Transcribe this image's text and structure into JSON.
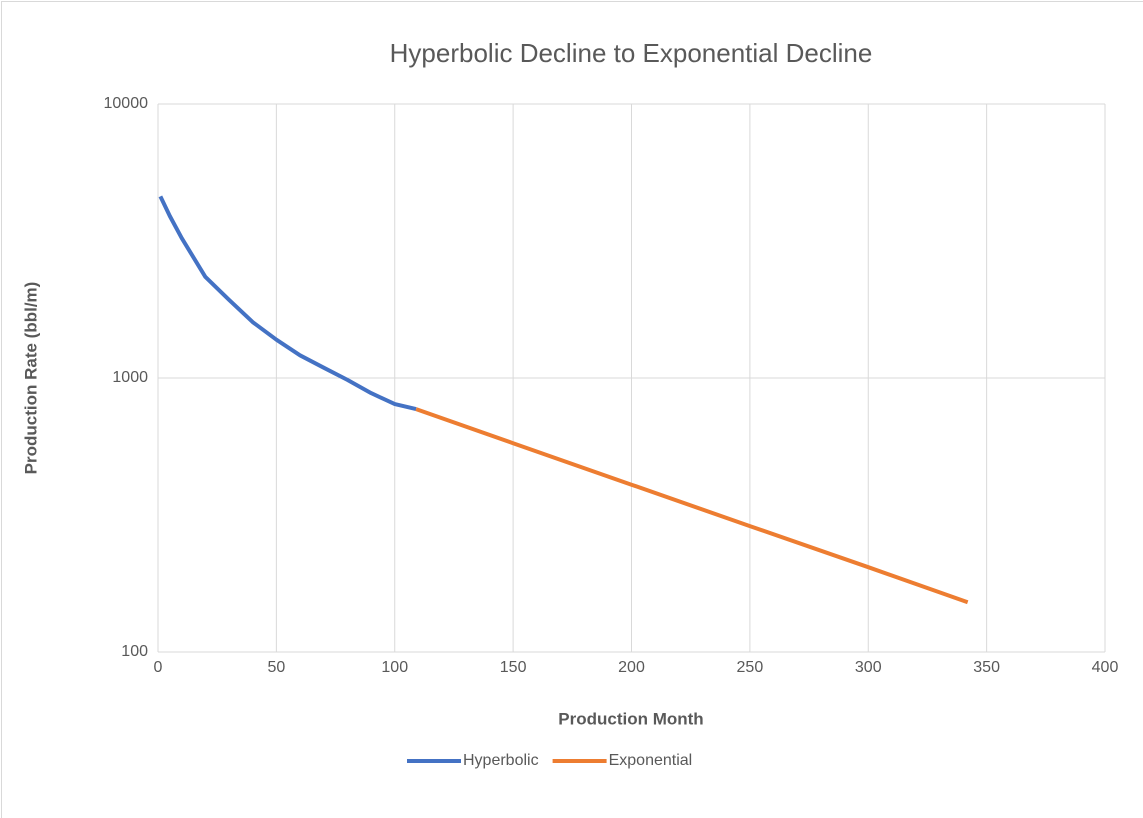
{
  "chart_data": {
    "type": "line",
    "title": "Hyperbolic Decline to Exponential Decline",
    "x_label": "Production Month",
    "y_label": "Production Rate (bbl/m)",
    "xlim": [
      0,
      400
    ],
    "xticks": [
      0,
      50,
      100,
      150,
      200,
      250,
      300,
      350,
      400
    ],
    "ylim": [
      100,
      10000
    ],
    "yticks": [
      100,
      1000,
      10000
    ],
    "y_scale": "log",
    "grid": true,
    "legend": "bottom",
    "series": [
      {
        "name": "Hyperbolic",
        "color": "#4472c4",
        "x": [
          1,
          5,
          10,
          20,
          30,
          40,
          50,
          60,
          70,
          80,
          90,
          100,
          109
        ],
        "values": [
          4600,
          3900,
          3240,
          2340,
          1930,
          1600,
          1380,
          1210,
          1090,
          984,
          881,
          803,
          770
        ]
      },
      {
        "name": "Exponential",
        "color": "#ed7d31",
        "x": [
          109,
          150,
          200,
          250,
          300,
          342
        ],
        "values": [
          770,
          578,
          408,
          288,
          204,
          152
        ]
      }
    ]
  }
}
